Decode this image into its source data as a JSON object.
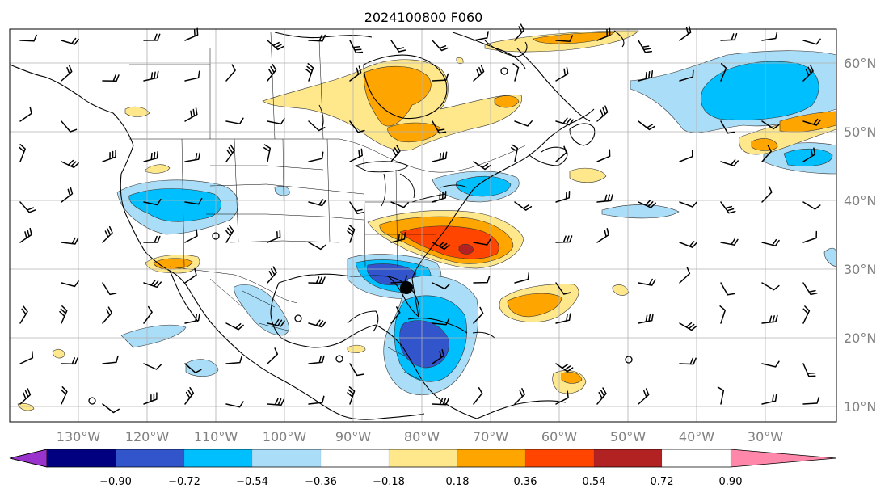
{
  "title": "2024100800 F060",
  "longitude_labels": [
    "130°W",
    "120°W",
    "110°W",
    "100°W",
    "90°W",
    "80°W",
    "70°W",
    "60°W",
    "50°W",
    "40°W",
    "30°W"
  ],
  "latitude_labels": [
    "60°N",
    "50°N",
    "40°N",
    "30°N",
    "20°N",
    "10°N"
  ],
  "colorbar": {
    "ticks": [
      "−0.90",
      "−0.72",
      "−0.54",
      "−0.36",
      "−0.18",
      "0.18",
      "0.36",
      "0.54",
      "0.72",
      "0.90"
    ],
    "colors": [
      "#9933cc",
      "#000080",
      "#3355cc",
      "#00bfff",
      "#aaddf7",
      "#ffffff",
      "#ffe88c",
      "#ffa500",
      "#ff4500",
      "#b22222",
      "#ff88aa"
    ]
  },
  "colors": {
    "neg_1": "#aaddf7",
    "neg_2": "#00bfff",
    "neg_3": "#3355cc",
    "pos_1": "#ffe88c",
    "pos_2": "#ffa500",
    "pos_3": "#ff4500",
    "pos_4": "#b22222"
  }
}
